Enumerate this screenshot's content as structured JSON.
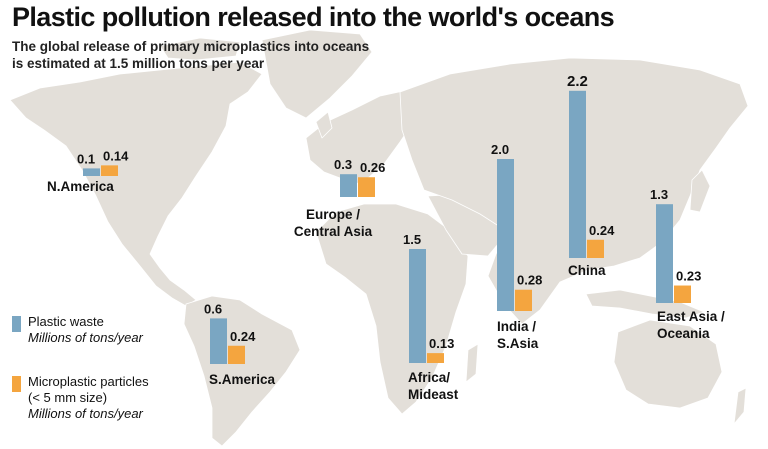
{
  "title": "Plastic pollution released into the world's oceans",
  "subtitle_lines": [
    "The global release of primary microplastics into oceans",
    "is estimated at 1.5 million tons per year"
  ],
  "colors": {
    "plastic_waste": "#7aa6c2",
    "microplastic": "#f4a53f",
    "map_land": "#e3dfd9",
    "text": "#111111"
  },
  "legend": {
    "plastic_waste": {
      "label": "Plastic waste",
      "unit": "Millions of tons/year"
    },
    "microplastic": {
      "label": "Microplastic particles",
      "sub": "(< 5 mm size)",
      "unit": "Millions of tons/year"
    }
  },
  "chart_data": {
    "type": "bar",
    "title": "Plastic pollution released into the world's oceans",
    "subtitle": "The global release of primary microplastics into oceans is estimated at 1.5 million tons per year",
    "unit": "Millions of tons/year",
    "categories": [
      "N.America",
      "Europe / Central Asia",
      "S.America",
      "Africa/ Mideast",
      "India / S.Asia",
      "China",
      "East Asia / Oceania"
    ],
    "category_lines": [
      [
        "N.America"
      ],
      [
        "Europe /",
        "Central Asia"
      ],
      [
        "S.America"
      ],
      [
        "Africa/",
        "Mideast"
      ],
      [
        "India /",
        "S.Asia"
      ],
      [
        "China"
      ],
      [
        "East Asia /",
        "Oceania"
      ]
    ],
    "series": [
      {
        "name": "Plastic waste",
        "values": [
          0.1,
          0.3,
          0.6,
          1.5,
          2.0,
          2.2,
          1.3
        ],
        "labels": [
          "0.1",
          "0.3",
          "0.6",
          "1.5",
          "2.0",
          "2.2",
          "1.3"
        ]
      },
      {
        "name": "Microplastic particles (< 5 mm size)",
        "values": [
          0.14,
          0.26,
          0.24,
          0.13,
          0.28,
          0.24,
          0.23
        ],
        "labels": [
          "0.14",
          "0.26",
          "0.24",
          "0.13",
          "0.28",
          "0.24",
          "0.23"
        ]
      }
    ]
  }
}
